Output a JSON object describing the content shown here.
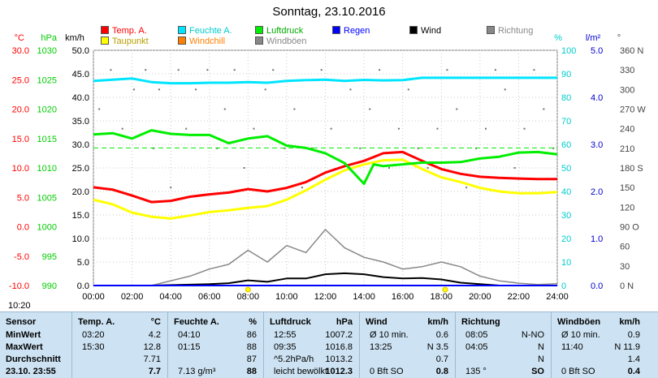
{
  "title": "Sonntag, 23.10.2016",
  "legend": [
    {
      "label": "Temp. A.",
      "color": "#ff0000",
      "row": 0,
      "col": 0
    },
    {
      "label": "Feuchte A.",
      "color": "#00e5ff",
      "row": 0,
      "col": 1
    },
    {
      "label": "Luftdruck",
      "color": "#00ee00",
      "row": 0,
      "col": 2
    },
    {
      "label": "Regen",
      "color": "#0000ff",
      "row": 0,
      "col": 3
    },
    {
      "label": "Wind",
      "color": "#000000",
      "row": 0,
      "col": 4
    },
    {
      "label": "Richtung",
      "color": "#888888",
      "row": 0,
      "col": 5
    },
    {
      "label": "Taupunkt",
      "color": "#ffff00",
      "row": 1,
      "col": 0
    },
    {
      "label": "Windchill",
      "color": "#ff7f00",
      "row": 1,
      "col": 1
    },
    {
      "label": "Windböen",
      "color": "#888888",
      "row": 1,
      "col": 2
    }
  ],
  "axis_headers": {
    "temp": "°C",
    "pressure": "hPa",
    "wind": "km/h",
    "humidity": "%",
    "rain": "l/m²",
    "direction": "°"
  },
  "clock": "10:20",
  "chart_data": {
    "type": "line",
    "x": [
      "00:00",
      "02:00",
      "04:00",
      "06:00",
      "08:00",
      "10:00",
      "12:00",
      "14:00",
      "16:00",
      "18:00",
      "20:00",
      "22:00",
      "24:00"
    ],
    "axes": {
      "temp": {
        "min": -10,
        "max": 30,
        "ticks": [
          "30.0",
          "25.0",
          "20.0",
          "15.0",
          "10.0",
          "5.0",
          "0.0",
          "-5.0",
          "-10.0"
        ]
      },
      "pressure": {
        "min": 990,
        "max": 1030,
        "ticks": [
          "1030",
          "1025",
          "1020",
          "1015",
          "1010",
          "1005",
          "1000",
          "995",
          "990"
        ]
      },
      "wind": {
        "min": 0,
        "max": 50,
        "ticks": [
          "50.0",
          "45.0",
          "40.0",
          "35.0",
          "30.0",
          "25.0",
          "20.0",
          "15.0",
          "10.0",
          "5.0",
          "0.0"
        ]
      },
      "humidity": {
        "min": 0,
        "max": 100,
        "ticks": [
          "100",
          "90",
          "80",
          "70",
          "60",
          "50",
          "40",
          "30",
          "20",
          "10",
          "0"
        ]
      },
      "rain": {
        "min": 0,
        "max": 5,
        "ticks": [
          "5.0",
          "4.0",
          "3.0",
          "2.0",
          "1.0",
          "0.0"
        ]
      },
      "direction": {
        "min": 0,
        "max": 360,
        "ticks": [
          "360 N",
          "330",
          "300",
          "270 W",
          "240",
          "210",
          "180 S",
          "150",
          "120",
          "90 O",
          "60",
          "30",
          "0 N"
        ]
      }
    },
    "series": [
      {
        "name": "Temp. A.",
        "axis": "temp",
        "color": "#ff0000",
        "points": [
          [
            0,
            6.7
          ],
          [
            1,
            6.3
          ],
          [
            2,
            5.3
          ],
          [
            3,
            4.2
          ],
          [
            4,
            4.4
          ],
          [
            5,
            5.1
          ],
          [
            6,
            5.5
          ],
          [
            7,
            5.8
          ],
          [
            8,
            6.4
          ],
          [
            9,
            6.0
          ],
          [
            10,
            6.6
          ],
          [
            11,
            7.6
          ],
          [
            12,
            9.2
          ],
          [
            13,
            10.3
          ],
          [
            14,
            11.2
          ],
          [
            15,
            12.5
          ],
          [
            16,
            12.7
          ],
          [
            17,
            11.2
          ],
          [
            18,
            9.8
          ],
          [
            19,
            9.0
          ],
          [
            20,
            8.5
          ],
          [
            21,
            8.3
          ],
          [
            22,
            8.2
          ],
          [
            23,
            8.1
          ],
          [
            24,
            8.1
          ]
        ]
      },
      {
        "name": "Taupunkt",
        "axis": "temp",
        "color": "#ffff00",
        "points": [
          [
            0,
            4.6
          ],
          [
            1,
            3.8
          ],
          [
            2,
            2.4
          ],
          [
            3,
            1.7
          ],
          [
            4,
            1.4
          ],
          [
            5,
            1.9
          ],
          [
            6,
            2.5
          ],
          [
            7,
            2.8
          ],
          [
            8,
            3.2
          ],
          [
            9,
            3.5
          ],
          [
            10,
            4.6
          ],
          [
            11,
            6.2
          ],
          [
            12,
            8.0
          ],
          [
            13,
            9.6
          ],
          [
            14,
            10.6
          ],
          [
            15,
            11.3
          ],
          [
            16,
            11.4
          ],
          [
            17,
            9.8
          ],
          [
            18,
            8.4
          ],
          [
            19,
            7.6
          ],
          [
            20,
            6.6
          ],
          [
            21,
            6.0
          ],
          [
            22,
            5.7
          ],
          [
            23,
            5.7
          ],
          [
            24,
            5.9
          ]
        ]
      },
      {
        "name": "Feuchte A.",
        "axis": "humidity",
        "color": "#00e5ff",
        "points": [
          [
            0,
            87
          ],
          [
            1,
            87.5
          ],
          [
            2,
            88
          ],
          [
            3,
            86.5
          ],
          [
            4,
            86
          ],
          [
            5,
            86
          ],
          [
            6,
            86.2
          ],
          [
            7,
            86.2
          ],
          [
            8,
            86.5
          ],
          [
            9,
            86.2
          ],
          [
            10,
            87
          ],
          [
            11,
            87.3
          ],
          [
            12,
            87.5
          ],
          [
            13,
            87
          ],
          [
            14,
            87.4
          ],
          [
            15,
            87.2
          ],
          [
            16,
            87.3
          ],
          [
            17,
            88.3
          ],
          [
            18,
            88.3
          ],
          [
            19,
            88.3
          ],
          [
            20,
            88.3
          ],
          [
            21,
            88.3
          ],
          [
            22,
            88.3
          ],
          [
            23,
            88.3
          ],
          [
            24,
            88.3
          ]
        ]
      },
      {
        "name": "Luftdruck",
        "axis": "pressure",
        "color": "#00ee00",
        "points": [
          [
            0,
            1015.7
          ],
          [
            1,
            1015.9
          ],
          [
            2,
            1015
          ],
          [
            3,
            1016.4
          ],
          [
            4,
            1015.8
          ],
          [
            5,
            1015.6
          ],
          [
            6,
            1015.6
          ],
          [
            7,
            1014.2
          ],
          [
            8,
            1015
          ],
          [
            9,
            1015.4
          ],
          [
            10,
            1013.8
          ],
          [
            11,
            1013.4
          ],
          [
            12,
            1012.5
          ],
          [
            13,
            1010.8
          ],
          [
            14,
            1007.3
          ],
          [
            14.5,
            1010.6
          ],
          [
            15,
            1010.3
          ],
          [
            16,
            1010.6
          ],
          [
            17,
            1010.9
          ],
          [
            18,
            1010.9
          ],
          [
            19,
            1011
          ],
          [
            20,
            1011.6
          ],
          [
            21,
            1011.9
          ],
          [
            22,
            1012.6
          ],
          [
            23,
            1012.7
          ],
          [
            24,
            1012.3
          ]
        ]
      },
      {
        "name": "Wind",
        "axis": "wind",
        "color": "#000000",
        "points": [
          [
            0,
            0
          ],
          [
            3,
            0
          ],
          [
            6,
            0.3
          ],
          [
            7,
            0.5
          ],
          [
            8,
            1.1
          ],
          [
            9,
            0.8
          ],
          [
            10,
            1.5
          ],
          [
            11,
            1.5
          ],
          [
            12,
            2.4
          ],
          [
            13,
            2.6
          ],
          [
            14,
            2.4
          ],
          [
            15,
            1.8
          ],
          [
            16,
            1.5
          ],
          [
            17,
            1.6
          ],
          [
            18,
            1.3
          ],
          [
            19,
            0.6
          ],
          [
            20,
            0.3
          ],
          [
            21,
            0
          ],
          [
            22,
            0
          ],
          [
            23,
            0
          ],
          [
            24,
            0
          ]
        ]
      },
      {
        "name": "Windböen",
        "axis": "wind",
        "color": "#888888",
        "points": [
          [
            0,
            0
          ],
          [
            3,
            0
          ],
          [
            5,
            2
          ],
          [
            6,
            3.5
          ],
          [
            7,
            4.5
          ],
          [
            8,
            7.5
          ],
          [
            9,
            5
          ],
          [
            10,
            8.5
          ],
          [
            11,
            7
          ],
          [
            12,
            11.9
          ],
          [
            13,
            8
          ],
          [
            14,
            6
          ],
          [
            15,
            5
          ],
          [
            16,
            3.5
          ],
          [
            17,
            4
          ],
          [
            18,
            5
          ],
          [
            19,
            4
          ],
          [
            20,
            2
          ],
          [
            21,
            1
          ],
          [
            22,
            0.5
          ],
          [
            23,
            0.2
          ],
          [
            24,
            0.4
          ]
        ]
      },
      {
        "name": "Regen",
        "axis": "rain",
        "color": "#0000ff",
        "points": [
          [
            0,
            0
          ],
          [
            24,
            0
          ]
        ]
      }
    ],
    "reference_line": {
      "axis": "humidity",
      "value": 58.5,
      "color": "#00ee00",
      "style": "dashed"
    },
    "direction_dots": [
      [
        0.3,
        270
      ],
      [
        0.9,
        330
      ],
      [
        1.5,
        240
      ],
      [
        2.1,
        300
      ],
      [
        2.7,
        330
      ],
      [
        3.1,
        210
      ],
      [
        3.4,
        300
      ],
      [
        4.0,
        150
      ],
      [
        4.4,
        330
      ],
      [
        4.8,
        240
      ],
      [
        5.3,
        300
      ],
      [
        5.9,
        330
      ],
      [
        6.4,
        210
      ],
      [
        6.8,
        270
      ],
      [
        7.3,
        330
      ],
      [
        7.8,
        180
      ],
      [
        8.3,
        240
      ],
      [
        8.9,
        300
      ],
      [
        9.3,
        330
      ],
      [
        9.9,
        210
      ],
      [
        10.4,
        270
      ],
      [
        10.8,
        150
      ],
      [
        11.3,
        210
      ],
      [
        11.8,
        330
      ],
      [
        12.3,
        240
      ],
      [
        12.8,
        180
      ],
      [
        13.3,
        300
      ],
      [
        13.8,
        210
      ],
      [
        14.3,
        270
      ],
      [
        14.8,
        330
      ],
      [
        15.3,
        180
      ],
      [
        15.8,
        240
      ],
      [
        16.3,
        300
      ],
      [
        16.8,
        210
      ],
      [
        17.3,
        180
      ],
      [
        17.8,
        240
      ],
      [
        18.3,
        330
      ],
      [
        18.8,
        270
      ],
      [
        19.3,
        150
      ],
      [
        19.8,
        210
      ],
      [
        20.3,
        240
      ],
      [
        20.8,
        330
      ],
      [
        21.3,
        300
      ],
      [
        21.8,
        180
      ],
      [
        22.3,
        240
      ],
      [
        22.8,
        330
      ],
      [
        23.3,
        270
      ],
      [
        23.8,
        210
      ]
    ],
    "day_markers": [
      {
        "hour": 8,
        "label": "sunrise"
      },
      {
        "hour": 18.2,
        "label": "sunset"
      }
    ]
  },
  "table": {
    "columns": [
      {
        "x": 0,
        "w": 88,
        "header": "Sensor",
        "rows": [
          "MinWert",
          "MaxWert",
          "Durchschnitt",
          "23.10. 23:55"
        ]
      },
      {
        "x": 88,
        "w": 118,
        "header": "Temp. A.",
        "unit": "°C",
        "rows": [
          [
            "03:20",
            "4.2"
          ],
          [
            "15:30",
            "12.8"
          ],
          [
            "",
            "7.71"
          ],
          [
            "",
            "7.7"
          ]
        ]
      },
      {
        "x": 206,
        "w": 118,
        "header": "Feuchte A.",
        "unit": "%",
        "rows": [
          [
            "04:10",
            "86"
          ],
          [
            "01:15",
            "88"
          ],
          [
            "",
            "87"
          ],
          [
            "7.13 g/m³",
            "88"
          ]
        ]
      },
      {
        "x": 324,
        "w": 118,
        "header": "Luftdruck",
        "unit": "hPa",
        "rows": [
          [
            "12:55",
            "1007.2"
          ],
          [
            "09:35",
            "1016.8"
          ],
          [
            "^5.2hPa/h",
            "1013.2"
          ],
          [
            "leicht bewölkt",
            "1012.3"
          ]
        ]
      },
      {
        "x": 442,
        "w": 118,
        "header": "Wind",
        "unit": "km/h",
        "rows": [
          [
            "Ø 10 min.",
            "0.6"
          ],
          [
            "13:25",
            "N 3.5"
          ],
          [
            "",
            "0.7"
          ],
          [
            "0 Bft SO",
            "0.8"
          ]
        ]
      },
      {
        "x": 560,
        "w": 118,
        "header": "Richtung",
        "unit": "",
        "rows": [
          [
            "08:05",
            "N-NO"
          ],
          [
            "04:05",
            "N"
          ],
          [
            "",
            "N"
          ],
          [
            "135 °",
            "SO"
          ]
        ]
      },
      {
        "x": 678,
        "w": 118,
        "header": "Windböen",
        "unit": "km/h",
        "rows": [
          [
            "Ø 10 min.",
            "0.9"
          ],
          [
            "11:40",
            "N 11.9"
          ],
          [
            "",
            "1.4"
          ],
          [
            "0 Bft SO",
            "0.4"
          ]
        ]
      }
    ]
  }
}
